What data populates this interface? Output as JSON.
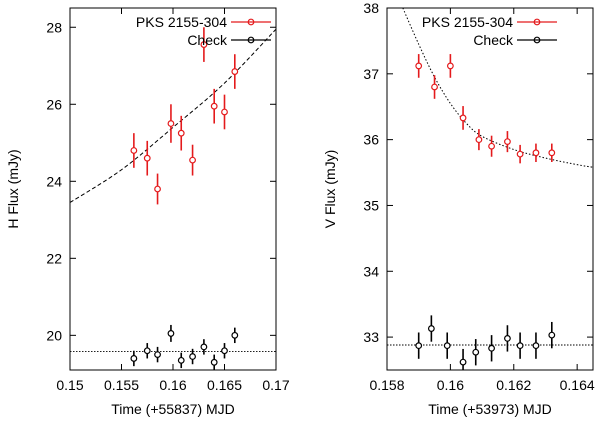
{
  "chart_data": [
    {
      "type": "scatter",
      "xlabel": "Time (+55837) MJD",
      "ylabel": "H Flux (mJy)",
      "xlim": [
        0.15,
        0.17
      ],
      "ylim": [
        19.1,
        28.5
      ],
      "xticks": [
        0.15,
        0.155,
        0.16,
        0.165,
        0.17
      ],
      "xtick_labels": [
        "0.15",
        "0.155",
        "0.16",
        "0.165",
        "0.17"
      ],
      "yticks": [
        20,
        22,
        24,
        26,
        28
      ],
      "ytick_labels": [
        "20",
        "22",
        "24",
        "26",
        "28"
      ],
      "legend_position": "top-right",
      "series": [
        {
          "name": "PKS 2155-304",
          "color": "#e41a1c",
          "points": [
            {
              "x": 0.1562,
              "y": 24.8,
              "err": 0.45
            },
            {
              "x": 0.1575,
              "y": 24.6,
              "err": 0.45
            },
            {
              "x": 0.1585,
              "y": 23.8,
              "err": 0.4
            },
            {
              "x": 0.1598,
              "y": 25.5,
              "err": 0.5
            },
            {
              "x": 0.1608,
              "y": 25.25,
              "err": 0.45
            },
            {
              "x": 0.1619,
              "y": 24.55,
              "err": 0.4
            },
            {
              "x": 0.163,
              "y": 27.55,
              "err": 0.45
            },
            {
              "x": 0.164,
              "y": 25.95,
              "err": 0.45
            },
            {
              "x": 0.165,
              "y": 25.8,
              "err": 0.45
            },
            {
              "x": 0.166,
              "y": 26.85,
              "err": 0.45
            }
          ]
        },
        {
          "name": "Check",
          "color": "#000000",
          "points": [
            {
              "x": 0.1562,
              "y": 19.4,
              "err": 0.2
            },
            {
              "x": 0.1575,
              "y": 19.6,
              "err": 0.2
            },
            {
              "x": 0.1585,
              "y": 19.5,
              "err": 0.2
            },
            {
              "x": 0.1598,
              "y": 20.05,
              "err": 0.22
            },
            {
              "x": 0.1608,
              "y": 19.35,
              "err": 0.2
            },
            {
              "x": 0.1619,
              "y": 19.45,
              "err": 0.2
            },
            {
              "x": 0.163,
              "y": 19.7,
              "err": 0.2
            },
            {
              "x": 0.164,
              "y": 19.3,
              "err": 0.2
            },
            {
              "x": 0.165,
              "y": 19.6,
              "err": 0.2
            },
            {
              "x": 0.166,
              "y": 20.0,
              "err": 0.2
            }
          ]
        }
      ],
      "fit_curve": {
        "style": "dashed",
        "x": [
          0.15,
          0.155,
          0.16,
          0.165,
          0.17
        ],
        "y": [
          23.45,
          24.3,
          25.4,
          26.55,
          27.95
        ]
      },
      "reference_line": {
        "style": "dotted",
        "y": 19.58
      }
    },
    {
      "type": "scatter",
      "xlabel": "Time (+53973) MJD",
      "ylabel": "V Flux (mJy)",
      "xlim": [
        0.158,
        0.1645
      ],
      "ylim": [
        32.5,
        38.0
      ],
      "xticks": [
        0.158,
        0.16,
        0.162,
        0.164
      ],
      "xtick_labels": [
        "0.158",
        "0.16",
        "0.162",
        "0.164"
      ],
      "yticks": [
        33,
        34,
        35,
        36,
        37,
        38
      ],
      "ytick_labels": [
        "33",
        "34",
        "35",
        "36",
        "37",
        "38"
      ],
      "legend_position": "top-right",
      "series": [
        {
          "name": "PKS 2155-304",
          "color": "#e41a1c",
          "points": [
            {
              "x": 0.159,
              "y": 37.12,
              "err": 0.18
            },
            {
              "x": 0.1595,
              "y": 36.8,
              "err": 0.18
            },
            {
              "x": 0.16,
              "y": 37.12,
              "err": 0.18
            },
            {
              "x": 0.1604,
              "y": 36.33,
              "err": 0.18
            },
            {
              "x": 0.1609,
              "y": 36.0,
              "err": 0.16
            },
            {
              "x": 0.1613,
              "y": 35.9,
              "err": 0.16
            },
            {
              "x": 0.1618,
              "y": 35.97,
              "err": 0.16
            },
            {
              "x": 0.1622,
              "y": 35.78,
              "err": 0.14
            },
            {
              "x": 0.1627,
              "y": 35.8,
              "err": 0.14
            },
            {
              "x": 0.1632,
              "y": 35.8,
              "err": 0.14
            }
          ]
        },
        {
          "name": "Check",
          "color": "#000000",
          "points": [
            {
              "x": 0.159,
              "y": 32.87,
              "err": 0.2
            },
            {
              "x": 0.1594,
              "y": 33.13,
              "err": 0.2
            },
            {
              "x": 0.1599,
              "y": 32.87,
              "err": 0.2
            },
            {
              "x": 0.1604,
              "y": 32.62,
              "err": 0.2
            },
            {
              "x": 0.1608,
              "y": 32.77,
              "err": 0.2
            },
            {
              "x": 0.1613,
              "y": 32.83,
              "err": 0.2
            },
            {
              "x": 0.1618,
              "y": 32.98,
              "err": 0.2
            },
            {
              "x": 0.1622,
              "y": 32.87,
              "err": 0.2
            },
            {
              "x": 0.1627,
              "y": 32.87,
              "err": 0.2
            },
            {
              "x": 0.1632,
              "y": 33.03,
              "err": 0.2
            }
          ]
        }
      ],
      "fit_curve": {
        "style": "dotted",
        "x": [
          0.1585,
          0.159,
          0.1595,
          0.16,
          0.1605,
          0.161,
          0.162,
          0.163,
          0.164,
          0.1645
        ],
        "y": [
          38.0,
          37.45,
          36.95,
          36.55,
          36.25,
          36.05,
          35.85,
          35.72,
          35.62,
          35.58
        ]
      },
      "reference_line": {
        "style": "dotted",
        "y": 32.88
      }
    }
  ]
}
